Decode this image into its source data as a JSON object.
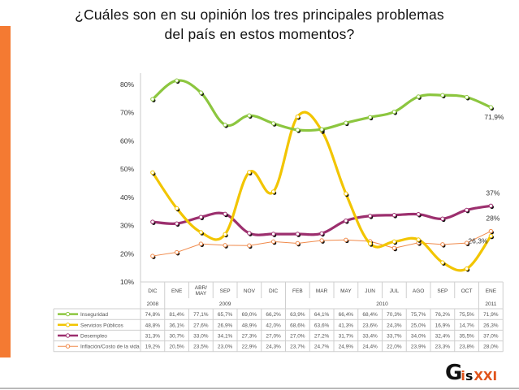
{
  "title_line1": "¿Cuáles son en su opinión los tres principales problemas",
  "title_line2": "del país en estos momentos?",
  "colors": {
    "side_bar": "#f47a32",
    "logo_accent": "#e0531a"
  },
  "logo": {
    "g": "G",
    "i": "i",
    "s": "s",
    "xxi": "XXI"
  },
  "chart_data": {
    "type": "line",
    "title": "¿Cuáles son en su opinión los tres principales problemas del país en estos momentos?",
    "xlabel": "",
    "ylabel": "",
    "ylim": [
      10,
      80
    ],
    "yticks": [
      "80%",
      "70%",
      "60%",
      "50%",
      "40%",
      "30%",
      "20%",
      "10%"
    ],
    "ytick_values": [
      80,
      70,
      60,
      50,
      40,
      30,
      20,
      10
    ],
    "grid": false,
    "legend": "table-bottom-left",
    "categories": [
      "DIC",
      "ENE",
      "ABR/ MAY",
      "SEP",
      "NOV",
      "DIC",
      "FEB",
      "MAR",
      "MAY",
      "JUN",
      "JUL",
      "AGO",
      "SEP",
      "OCT",
      "ENE"
    ],
    "year_groups": [
      {
        "label": "2008",
        "span": 1
      },
      {
        "label": "2009",
        "span": 5
      },
      {
        "label": "2010",
        "span": 8
      },
      {
        "label": "2011",
        "span": 1
      }
    ],
    "series": [
      {
        "name": "Inseguridad",
        "color": "#8cc63f",
        "style": "thick",
        "values": [
          74.8,
          81.4,
          77.1,
          65.7,
          69.0,
          66.2,
          63.9,
          64.1,
          66.4,
          68.4,
          70.3,
          75.7,
          76.2,
          75.5,
          71.9
        ],
        "labels": [
          "74,8%",
          "81,4%",
          "77,1%",
          "65,7%",
          "69,0%",
          "66,2%",
          "63,9%",
          "64,1%",
          "66,4%",
          "68,4%",
          "70,3%",
          "75,7%",
          "76,2%",
          "75,5%",
          "71,9%"
        ],
        "end_annotation": "71,9%"
      },
      {
        "name": "Servicios Públicos",
        "color": "#f2c500",
        "style": "thick",
        "values": [
          48.8,
          36.1,
          27.6,
          26.9,
          48.9,
          42.0,
          68.6,
          63.6,
          41.3,
          23.6,
          24.3,
          25.0,
          16.9,
          14.7,
          26.3
        ],
        "labels": [
          "48,8%",
          "36,1%",
          "27,6%",
          "26,9%",
          "48,9%",
          "42,0%",
          "68,6%",
          "63,6%",
          "41,3%",
          "23,6%",
          "24,3%",
          "25,0%",
          "16,9%",
          "14,7%",
          "26,3%"
        ],
        "end_annotation": "26,3%"
      },
      {
        "name": "Desempleo",
        "color": "#9c2f6e",
        "style": "thick",
        "values": [
          31.3,
          30.7,
          33.0,
          34.1,
          27.3,
          27.0,
          27.0,
          27.2,
          31.7,
          33.4,
          33.7,
          34.0,
          32.4,
          35.5,
          37.0
        ],
        "labels": [
          "31,3%",
          "30,7%",
          "33,0%",
          "34,1%",
          "27,3%",
          "27,0%",
          "27,0%",
          "27,2%",
          "31,7%",
          "33,4%",
          "33,7%",
          "34,0%",
          "32,4%",
          "35,5%",
          "37,0%"
        ],
        "end_annotation": "37%"
      },
      {
        "name": "Inflación/Costo de la vida",
        "color": "#f08a4b",
        "style": "thin",
        "values": [
          19.2,
          20.5,
          23.5,
          23.0,
          22.9,
          24.3,
          23.7,
          24.7,
          24.9,
          24.4,
          22.0,
          23.9,
          23.3,
          23.8,
          28.0
        ],
        "labels": [
          "19,2%",
          "20,5%",
          "23,5%",
          "23,0%",
          "22,9%",
          "24,3%",
          "23,7%",
          "24,7%",
          "24,9%",
          "24,4%",
          "22,0%",
          "23,9%",
          "23,3%",
          "23,8%",
          "28,0%"
        ],
        "end_annotation": "28%"
      }
    ]
  }
}
